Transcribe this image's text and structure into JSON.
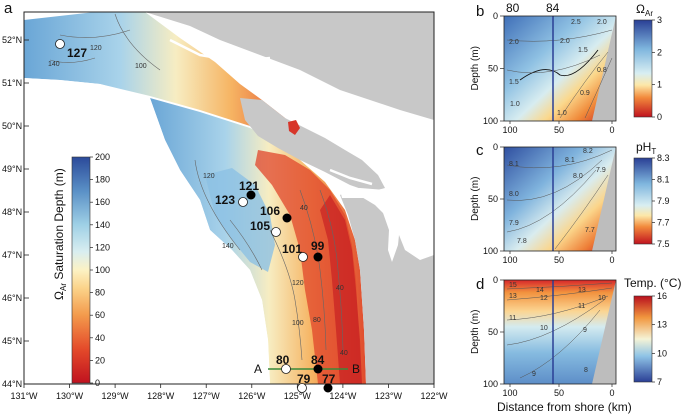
{
  "panels": {
    "a": {
      "letter": "a",
      "lat_ticks": [
        "52°N",
        "51°N",
        "50°N",
        "49°N",
        "48°N",
        "47°N",
        "46°N",
        "45°N",
        "44°N"
      ],
      "lon_ticks": [
        "131°W",
        "130°W",
        "129°W",
        "128°W",
        "127°W",
        "126°W",
        "125°W",
        "124°W",
        "123°W",
        "122°W"
      ],
      "colorbar": {
        "title": "ΩAr Saturation Depth (m)",
        "title_main": "Ω",
        "title_sub": "Ar",
        "title_rest": " Saturation Depth (m)",
        "ticks": [
          "200",
          "180",
          "160",
          "140",
          "120",
          "100",
          "80",
          "60",
          "40",
          "20",
          "0"
        ]
      },
      "stations": [
        {
          "id": "127",
          "fill": "white"
        },
        {
          "id": "121",
          "fill": "black"
        },
        {
          "id": "123",
          "fill": "white"
        },
        {
          "id": "106",
          "fill": "black"
        },
        {
          "id": "105",
          "fill": "white"
        },
        {
          "id": "101",
          "fill": "white"
        },
        {
          "id": "99",
          "fill": "black"
        },
        {
          "id": "80",
          "fill": "white"
        },
        {
          "id": "84",
          "fill": "black"
        },
        {
          "id": "79",
          "fill": "white"
        },
        {
          "id": "77",
          "fill": "black"
        }
      ],
      "transect": {
        "start_label": "A",
        "end_label": "B"
      },
      "contour_labels": [
        "120",
        "140",
        "100",
        "120",
        "40",
        "140",
        "120",
        "40",
        "100",
        "80",
        "40"
      ]
    },
    "b": {
      "letter": "b",
      "top_labels": [
        "80",
        "84"
      ],
      "colorbar_title_main": "Ω",
      "colorbar_title_sub": "Ar",
      "colorbar_ticks": [
        "3",
        "2",
        "1",
        "0"
      ],
      "contour_labels": [
        "2.5",
        "2.0",
        "2.0",
        "2.0",
        "1.5",
        "1.5",
        "1.0",
        "0.9",
        "0.8",
        "1.0"
      ]
    },
    "c": {
      "letter": "c",
      "colorbar_title_main": "pH",
      "colorbar_title_sub": "T",
      "colorbar_ticks": [
        "8.3",
        "8.1",
        "7.9",
        "7.7",
        "7.5"
      ],
      "contour_labels": [
        "8.2",
        "8.1",
        "8.1",
        "8.0",
        "8.0",
        "7.9",
        "7.9",
        "7.8",
        "7.7"
      ]
    },
    "d": {
      "letter": "d",
      "colorbar_title": "Temp. (°C)",
      "colorbar_ticks": [
        "16",
        "13",
        "10",
        "7"
      ],
      "contour_labels": [
        "15",
        "14",
        "13",
        "13",
        "12",
        "11",
        "11",
        "10",
        "10",
        "9",
        "9",
        "8"
      ]
    },
    "sections": {
      "depth_label": "Depth (m)",
      "depth_ticks": [
        "0",
        "50",
        "100"
      ],
      "x_ticks": [
        "100",
        "50",
        "0"
      ],
      "x_label": "Distance from shore (km)"
    }
  },
  "colors": {
    "land": "#c8c8c8",
    "station_white": "#ffffff",
    "station_black": "#000000",
    "transect": "#3a8a3a"
  }
}
